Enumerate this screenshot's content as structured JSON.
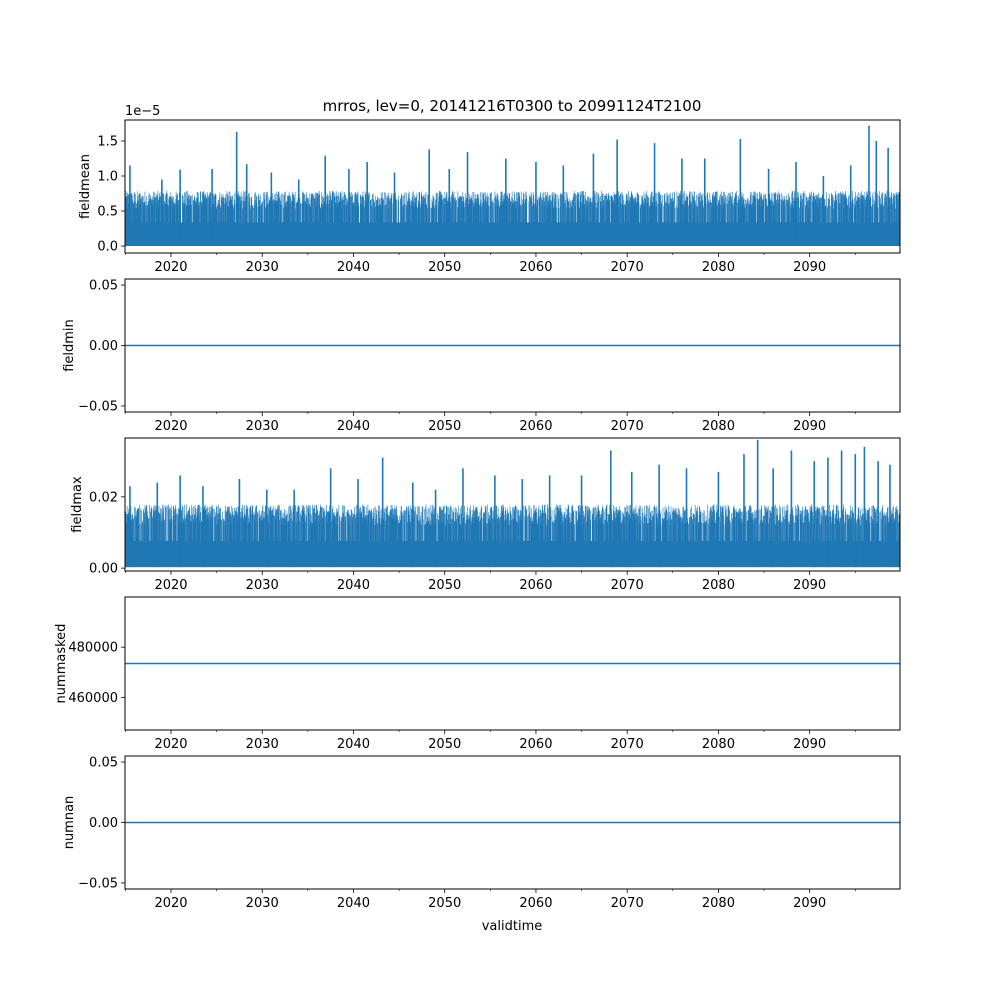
{
  "figure": {
    "title": "mrros, lev=0, 20141216T0300 to 20991124T2100",
    "xlabel": "validtime",
    "series_color": "#1f77b4"
  },
  "chart_data": [
    {
      "type": "line",
      "ylabel": "fieldmean",
      "offset_text": "1e−5",
      "xlim": [
        2014.96,
        2099.9
      ],
      "ylim": [
        -1e-06,
        1.8e-05
      ],
      "x_ticks": [
        2020,
        2030,
        2040,
        2050,
        2060,
        2070,
        2080,
        2090
      ],
      "x_tick_labels": [
        "2020",
        "2030",
        "2040",
        "2050",
        "2060",
        "2070",
        "2080",
        "2090"
      ],
      "y_ticks": [
        0.0,
        5e-06,
        1e-05,
        1.5e-05
      ],
      "y_tick_labels": [
        "0.0",
        "0.5",
        "1.0",
        "1.5"
      ],
      "series": [
        {
          "style": "dense-oscillation",
          "baseline": 0.0,
          "typical_peak": 7.5e-06,
          "peaks": [
            {
              "x": 2015.5,
              "y": 1.15e-05
            },
            {
              "x": 2019.0,
              "y": 9.5e-06
            },
            {
              "x": 2021.0,
              "y": 1.09e-05
            },
            {
              "x": 2024.5,
              "y": 1.1e-05
            },
            {
              "x": 2027.2,
              "y": 1.63e-05
            },
            {
              "x": 2028.3,
              "y": 1.17e-05
            },
            {
              "x": 2031.0,
              "y": 1.05e-05
            },
            {
              "x": 2034.0,
              "y": 9.5e-06
            },
            {
              "x": 2036.9,
              "y": 1.29e-05
            },
            {
              "x": 2039.5,
              "y": 1.1e-05
            },
            {
              "x": 2041.5,
              "y": 1.2e-05
            },
            {
              "x": 2044.5,
              "y": 1.05e-05
            },
            {
              "x": 2048.3,
              "y": 1.38e-05
            },
            {
              "x": 2050.5,
              "y": 1.1e-05
            },
            {
              "x": 2052.5,
              "y": 1.34e-05
            },
            {
              "x": 2056.7,
              "y": 1.25e-05
            },
            {
              "x": 2060.0,
              "y": 1.2e-05
            },
            {
              "x": 2063.0,
              "y": 1.15e-05
            },
            {
              "x": 2066.3,
              "y": 1.32e-05
            },
            {
              "x": 2068.9,
              "y": 1.52e-05
            },
            {
              "x": 2073.0,
              "y": 1.47e-05
            },
            {
              "x": 2076.0,
              "y": 1.25e-05
            },
            {
              "x": 2078.5,
              "y": 1.25e-05
            },
            {
              "x": 2082.4,
              "y": 1.53e-05
            },
            {
              "x": 2085.5,
              "y": 1.1e-05
            },
            {
              "x": 2088.5,
              "y": 1.2e-05
            },
            {
              "x": 2091.5,
              "y": 1e-05
            },
            {
              "x": 2094.5,
              "y": 1.15e-05
            },
            {
              "x": 2096.5,
              "y": 1.72e-05
            },
            {
              "x": 2097.3,
              "y": 1.5e-05
            },
            {
              "x": 2098.6,
              "y": 1.4e-05
            }
          ]
        }
      ]
    },
    {
      "type": "line",
      "ylabel": "fieldmin",
      "xlim": [
        2014.96,
        2099.9
      ],
      "ylim": [
        -0.055,
        0.055
      ],
      "x_ticks": [
        2020,
        2030,
        2040,
        2050,
        2060,
        2070,
        2080,
        2090
      ],
      "x_tick_labels": [
        "2020",
        "2030",
        "2040",
        "2050",
        "2060",
        "2070",
        "2080",
        "2090"
      ],
      "y_ticks": [
        -0.05,
        0.0,
        0.05
      ],
      "y_tick_labels": [
        "−0.05",
        "0.00",
        "0.05"
      ],
      "series": [
        {
          "style": "constant",
          "value": 0.0
        }
      ]
    },
    {
      "type": "line",
      "ylabel": "fieldmax",
      "xlim": [
        2014.96,
        2099.9
      ],
      "ylim": [
        -0.0008,
        0.0365
      ],
      "x_ticks": [
        2020,
        2030,
        2040,
        2050,
        2060,
        2070,
        2080,
        2090
      ],
      "x_tick_labels": [
        "2020",
        "2030",
        "2040",
        "2050",
        "2060",
        "2070",
        "2080",
        "2090"
      ],
      "y_ticks": [
        0.0,
        0.02
      ],
      "y_tick_labels": [
        "0.00",
        "0.02"
      ],
      "series": [
        {
          "style": "dense-oscillation",
          "baseline": 0.0003,
          "typical_peak": 0.017,
          "peaks": [
            {
              "x": 2015.5,
              "y": 0.023
            },
            {
              "x": 2018.5,
              "y": 0.024
            },
            {
              "x": 2021.0,
              "y": 0.026
            },
            {
              "x": 2023.5,
              "y": 0.023
            },
            {
              "x": 2027.5,
              "y": 0.025
            },
            {
              "x": 2030.5,
              "y": 0.022
            },
            {
              "x": 2033.5,
              "y": 0.022
            },
            {
              "x": 2037.5,
              "y": 0.028
            },
            {
              "x": 2040.5,
              "y": 0.025
            },
            {
              "x": 2043.2,
              "y": 0.031
            },
            {
              "x": 2046.5,
              "y": 0.024
            },
            {
              "x": 2049.0,
              "y": 0.022
            },
            {
              "x": 2052.0,
              "y": 0.028
            },
            {
              "x": 2055.5,
              "y": 0.026
            },
            {
              "x": 2058.5,
              "y": 0.025
            },
            {
              "x": 2061.5,
              "y": 0.026
            },
            {
              "x": 2065.0,
              "y": 0.026
            },
            {
              "x": 2068.2,
              "y": 0.033
            },
            {
              "x": 2070.5,
              "y": 0.027
            },
            {
              "x": 2073.5,
              "y": 0.029
            },
            {
              "x": 2076.5,
              "y": 0.028
            },
            {
              "x": 2080.0,
              "y": 0.027
            },
            {
              "x": 2082.8,
              "y": 0.032
            },
            {
              "x": 2084.3,
              "y": 0.036
            },
            {
              "x": 2086.0,
              "y": 0.028
            },
            {
              "x": 2088.0,
              "y": 0.033
            },
            {
              "x": 2090.5,
              "y": 0.03
            },
            {
              "x": 2092.0,
              "y": 0.031
            },
            {
              "x": 2093.5,
              "y": 0.033
            },
            {
              "x": 2095.0,
              "y": 0.032
            },
            {
              "x": 2096.0,
              "y": 0.034
            },
            {
              "x": 2097.5,
              "y": 0.03
            },
            {
              "x": 2098.8,
              "y": 0.029
            }
          ]
        }
      ]
    },
    {
      "type": "line",
      "ylabel": "nummasked",
      "xlim": [
        2014.96,
        2099.9
      ],
      "ylim": [
        447000,
        500000
      ],
      "x_ticks": [
        2020,
        2030,
        2040,
        2050,
        2060,
        2070,
        2080,
        2090
      ],
      "x_tick_labels": [
        "2020",
        "2030",
        "2040",
        "2050",
        "2060",
        "2070",
        "2080",
        "2090"
      ],
      "y_ticks": [
        460000,
        480000
      ],
      "y_tick_labels": [
        "460000",
        "480000"
      ],
      "series": [
        {
          "style": "constant",
          "value": 473500
        }
      ]
    },
    {
      "type": "line",
      "ylabel": "numnan",
      "xlim": [
        2014.96,
        2099.9
      ],
      "ylim": [
        -0.055,
        0.055
      ],
      "x_ticks": [
        2020,
        2030,
        2040,
        2050,
        2060,
        2070,
        2080,
        2090
      ],
      "x_tick_labels": [
        "2020",
        "2030",
        "2040",
        "2050",
        "2060",
        "2070",
        "2080",
        "2090"
      ],
      "y_ticks": [
        -0.05,
        0.0,
        0.05
      ],
      "y_tick_labels": [
        "−0.05",
        "0.00",
        "0.05"
      ],
      "series": [
        {
          "style": "constant",
          "value": 0.0
        }
      ]
    }
  ]
}
